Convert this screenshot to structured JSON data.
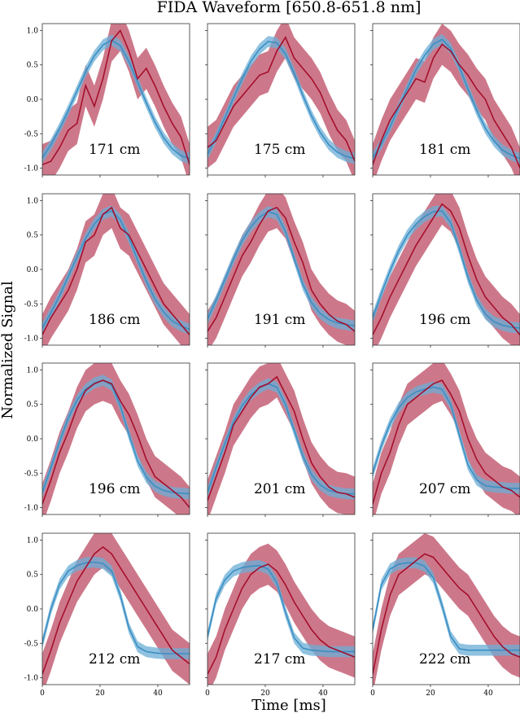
{
  "chart_data": {
    "type": "line",
    "title": "FIDA Waveform [650.8-651.8 nm]",
    "xlabel": "Time [ms]",
    "ylabel": "Normalized Signal",
    "xlim": [
      0,
      51
    ],
    "ylim": [
      -1.1,
      1.1
    ],
    "xticks": [
      0,
      20,
      40
    ],
    "yticks": [
      -1.0,
      -0.5,
      0.0,
      0.5,
      1.0
    ],
    "colors": {
      "model": "#3a8fc4",
      "model_band": "#6baed6",
      "measured": "#a50f2d",
      "measured_band": "#c0566d"
    },
    "panels": [
      {
        "label": "171 cm",
        "model": {
          "x": [
            0,
            3,
            6,
            9,
            12,
            15,
            18,
            21,
            24,
            27,
            30,
            33,
            36,
            39,
            42,
            45,
            48,
            51
          ],
          "y": [
            -0.85,
            -0.66,
            -0.42,
            -0.16,
            0.12,
            0.4,
            0.63,
            0.79,
            0.86,
            0.78,
            0.55,
            0.25,
            -0.05,
            -0.33,
            -0.56,
            -0.72,
            -0.82,
            -0.86
          ]
        },
        "measured": {
          "x": [
            0,
            3,
            6,
            9,
            12,
            15,
            18,
            21,
            24,
            27,
            30,
            33,
            36,
            39,
            42,
            45,
            48,
            51
          ],
          "y": [
            -0.95,
            -0.9,
            -0.7,
            -0.45,
            -0.35,
            0.2,
            -0.1,
            0.3,
            0.85,
            1.0,
            0.7,
            0.3,
            0.45,
            0.2,
            -0.1,
            -0.35,
            -0.55,
            -0.95
          ]
        }
      },
      {
        "label": "175 cm",
        "model": {
          "x": [
            0,
            3,
            6,
            9,
            12,
            15,
            18,
            21,
            24,
            27,
            30,
            33,
            36,
            39,
            42,
            45,
            48,
            51
          ],
          "y": [
            -0.8,
            -0.55,
            -0.27,
            0.02,
            0.3,
            0.55,
            0.73,
            0.84,
            0.82,
            0.66,
            0.38,
            0.06,
            -0.24,
            -0.48,
            -0.66,
            -0.77,
            -0.83,
            -0.86
          ]
        },
        "measured": {
          "x": [
            0,
            3,
            6,
            9,
            12,
            15,
            18,
            21,
            24,
            27,
            30,
            33,
            36,
            39,
            42,
            45,
            48,
            51
          ],
          "y": [
            -0.7,
            -0.6,
            -0.35,
            -0.1,
            0.05,
            0.2,
            0.35,
            0.4,
            0.7,
            0.9,
            0.6,
            0.45,
            0.3,
            0.1,
            -0.2,
            -0.45,
            -0.6,
            -0.9
          ]
        }
      },
      {
        "label": "181 cm",
        "model": {
          "x": [
            0,
            3,
            6,
            9,
            12,
            15,
            18,
            21,
            24,
            27,
            30,
            33,
            36,
            39,
            42,
            45,
            48,
            51
          ],
          "y": [
            -0.85,
            -0.65,
            -0.4,
            -0.12,
            0.16,
            0.43,
            0.64,
            0.8,
            0.87,
            0.74,
            0.47,
            0.15,
            -0.16,
            -0.42,
            -0.61,
            -0.74,
            -0.81,
            -0.86
          ]
        },
        "measured": {
          "x": [
            0,
            3,
            6,
            9,
            12,
            15,
            18,
            21,
            24,
            27,
            30,
            33,
            36,
            39,
            42,
            45,
            48,
            51
          ],
          "y": [
            -0.95,
            -0.6,
            -0.3,
            -0.1,
            0.1,
            0.3,
            0.25,
            0.6,
            0.8,
            0.7,
            0.5,
            0.35,
            0.15,
            0.0,
            -0.3,
            -0.5,
            -0.7,
            -1.0
          ]
        }
      },
      {
        "label": "186 cm",
        "model": {
          "x": [
            0,
            3,
            6,
            9,
            12,
            15,
            18,
            21,
            24,
            27,
            30,
            33,
            36,
            39,
            42,
            45,
            48,
            51
          ],
          "y": [
            -0.85,
            -0.63,
            -0.38,
            -0.1,
            0.18,
            0.45,
            0.66,
            0.8,
            0.85,
            0.72,
            0.46,
            0.14,
            -0.17,
            -0.43,
            -0.62,
            -0.75,
            -0.82,
            -0.87
          ]
        },
        "measured": {
          "x": [
            0,
            3,
            6,
            9,
            12,
            15,
            18,
            21,
            24,
            27,
            30,
            33,
            36,
            39,
            42,
            45,
            48,
            51
          ],
          "y": [
            -0.95,
            -0.7,
            -0.5,
            -0.3,
            0.0,
            0.4,
            0.5,
            0.8,
            0.9,
            0.6,
            0.5,
            0.25,
            0.0,
            -0.25,
            -0.5,
            -0.65,
            -0.8,
            -0.95
          ]
        }
      },
      {
        "label": "191 cm",
        "model": {
          "x": [
            0,
            3,
            6,
            9,
            12,
            15,
            18,
            21,
            24,
            27,
            30,
            33,
            36,
            39,
            42,
            45,
            48,
            51
          ],
          "y": [
            -0.72,
            -0.45,
            -0.15,
            0.15,
            0.42,
            0.62,
            0.76,
            0.84,
            0.8,
            0.55,
            0.16,
            -0.22,
            -0.48,
            -0.64,
            -0.73,
            -0.78,
            -0.8,
            -0.82
          ]
        },
        "measured": {
          "x": [
            0,
            3,
            6,
            9,
            12,
            15,
            18,
            21,
            24,
            27,
            30,
            33,
            36,
            39,
            42,
            45,
            48,
            51
          ],
          "y": [
            -0.9,
            -0.7,
            -0.4,
            -0.1,
            0.2,
            0.4,
            0.65,
            0.85,
            0.9,
            0.75,
            0.4,
            0.1,
            -0.3,
            -0.5,
            -0.65,
            -0.75,
            -0.8,
            -0.9
          ]
        }
      },
      {
        "label": "196 cm",
        "model": {
          "x": [
            0,
            3,
            6,
            9,
            12,
            15,
            18,
            21,
            24,
            27,
            30,
            33,
            36,
            39,
            42,
            45,
            48,
            51
          ],
          "y": [
            -0.7,
            -0.35,
            -0.02,
            0.27,
            0.5,
            0.66,
            0.77,
            0.84,
            0.85,
            0.68,
            0.3,
            -0.12,
            -0.45,
            -0.65,
            -0.76,
            -0.81,
            -0.84,
            -0.85
          ]
        },
        "measured": {
          "x": [
            0,
            3,
            6,
            9,
            12,
            15,
            18,
            21,
            24,
            27,
            30,
            33,
            36,
            39,
            42,
            45,
            48,
            51
          ],
          "y": [
            -0.95,
            -0.7,
            -0.4,
            -0.15,
            0.1,
            0.35,
            0.55,
            0.75,
            0.95,
            0.85,
            0.6,
            0.2,
            -0.15,
            -0.4,
            -0.55,
            -0.7,
            -0.8,
            -0.95
          ]
        }
      },
      {
        "label": "196 cm",
        "model": {
          "x": [
            0,
            3,
            6,
            9,
            12,
            15,
            18,
            21,
            24,
            27,
            30,
            33,
            36,
            39,
            42,
            45,
            48,
            51
          ],
          "y": [
            -0.78,
            -0.42,
            -0.04,
            0.3,
            0.56,
            0.72,
            0.81,
            0.85,
            0.78,
            0.48,
            0.06,
            -0.32,
            -0.56,
            -0.69,
            -0.75,
            -0.78,
            -0.79,
            -0.8
          ]
        },
        "measured": {
          "x": [
            0,
            3,
            6,
            9,
            12,
            15,
            18,
            21,
            24,
            27,
            30,
            33,
            36,
            39,
            42,
            45,
            48,
            51
          ],
          "y": [
            -0.95,
            -0.6,
            -0.2,
            0.1,
            0.45,
            0.7,
            0.8,
            0.85,
            0.8,
            0.55,
            0.35,
            0.05,
            -0.3,
            -0.55,
            -0.65,
            -0.75,
            -0.85,
            -1.0
          ]
        }
      },
      {
        "label": "201 cm",
        "model": {
          "x": [
            0,
            3,
            6,
            9,
            12,
            15,
            18,
            21,
            24,
            27,
            30,
            33,
            36,
            39,
            42,
            45,
            48,
            51
          ],
          "y": [
            -0.78,
            -0.42,
            -0.07,
            0.24,
            0.48,
            0.64,
            0.74,
            0.8,
            0.75,
            0.5,
            0.12,
            -0.25,
            -0.52,
            -0.67,
            -0.75,
            -0.78,
            -0.8,
            -0.8
          ]
        },
        "measured": {
          "x": [
            0,
            3,
            6,
            9,
            12,
            15,
            18,
            21,
            24,
            27,
            30,
            33,
            36,
            39,
            42,
            45,
            48,
            51
          ],
          "y": [
            -0.9,
            -0.55,
            -0.2,
            0.2,
            0.4,
            0.6,
            0.75,
            0.8,
            0.9,
            0.65,
            0.4,
            0.0,
            -0.35,
            -0.55,
            -0.7,
            -0.78,
            -0.8,
            -0.85
          ]
        }
      },
      {
        "label": "207 cm",
        "model": {
          "x": [
            0,
            3,
            6,
            9,
            12,
            15,
            18,
            21,
            24,
            27,
            30,
            33,
            36,
            39,
            42,
            45,
            48,
            51
          ],
          "y": [
            -0.5,
            -0.1,
            0.22,
            0.45,
            0.6,
            0.68,
            0.72,
            0.75,
            0.72,
            0.5,
            0.05,
            -0.38,
            -0.6,
            -0.68,
            -0.7,
            -0.71,
            -0.72,
            -0.72
          ]
        },
        "measured": {
          "x": [
            0,
            3,
            6,
            9,
            12,
            15,
            18,
            21,
            24,
            27,
            30,
            33,
            36,
            39,
            42,
            45,
            48,
            51
          ],
          "y": [
            -0.95,
            -0.5,
            -0.2,
            0.2,
            0.5,
            0.6,
            0.7,
            0.8,
            0.85,
            0.65,
            0.4,
            0.0,
            -0.3,
            -0.5,
            -0.6,
            -0.7,
            -0.75,
            -0.85
          ]
        }
      },
      {
        "label": "212 cm",
        "model": {
          "x": [
            0,
            3,
            6,
            9,
            12,
            15,
            18,
            21,
            24,
            27,
            30,
            33,
            36,
            39,
            42,
            45,
            48,
            51
          ],
          "y": [
            -0.5,
            0.0,
            0.36,
            0.55,
            0.63,
            0.67,
            0.68,
            0.66,
            0.55,
            0.2,
            -0.28,
            -0.55,
            -0.62,
            -0.64,
            -0.65,
            -0.65,
            -0.65,
            -0.65
          ]
        },
        "measured": {
          "x": [
            0,
            3,
            6,
            9,
            12,
            15,
            18,
            21,
            24,
            27,
            30,
            33,
            36,
            39,
            42,
            45,
            48,
            51
          ],
          "y": [
            -0.95,
            -0.6,
            -0.2,
            0.1,
            0.4,
            0.6,
            0.8,
            0.9,
            0.8,
            0.6,
            0.4,
            0.2,
            0.0,
            -0.2,
            -0.4,
            -0.6,
            -0.7,
            -0.8
          ]
        }
      },
      {
        "label": "217 cm",
        "model": {
          "x": [
            0,
            3,
            6,
            9,
            12,
            15,
            18,
            21,
            24,
            27,
            30,
            33,
            36,
            39,
            42,
            45,
            48,
            51
          ],
          "y": [
            -0.4,
            0.15,
            0.42,
            0.55,
            0.6,
            0.62,
            0.63,
            0.58,
            0.38,
            -0.05,
            -0.42,
            -0.57,
            -0.6,
            -0.61,
            -0.62,
            -0.62,
            -0.62,
            -0.62
          ]
        },
        "measured": {
          "x": [
            0,
            3,
            6,
            9,
            12,
            15,
            18,
            21,
            24,
            27,
            30,
            33,
            36,
            39,
            42,
            45,
            48,
            51
          ],
          "y": [
            -0.95,
            -0.7,
            -0.3,
            0.0,
            0.3,
            0.5,
            0.6,
            0.65,
            0.55,
            0.35,
            0.1,
            -0.1,
            -0.3,
            -0.45,
            -0.55,
            -0.6,
            -0.65,
            -0.7
          ]
        }
      },
      {
        "label": "222 cm",
        "model": {
          "x": [
            0,
            3,
            6,
            9,
            12,
            15,
            18,
            21,
            24,
            27,
            30,
            33,
            36,
            39,
            42,
            45,
            48,
            51
          ],
          "y": [
            -0.3,
            0.35,
            0.58,
            0.65,
            0.67,
            0.67,
            0.62,
            0.45,
            0.05,
            -0.4,
            -0.58,
            -0.6,
            -0.6,
            -0.6,
            -0.6,
            -0.6,
            -0.6,
            -0.6
          ]
        },
        "measured": {
          "x": [
            0,
            3,
            6,
            9,
            12,
            15,
            18,
            21,
            24,
            27,
            30,
            33,
            36,
            39,
            42,
            45,
            48,
            51
          ],
          "y": [
            -0.95,
            -0.3,
            0.2,
            0.5,
            0.6,
            0.7,
            0.8,
            0.75,
            0.6,
            0.45,
            0.3,
            0.2,
            0.0,
            -0.2,
            -0.4,
            -0.55,
            -0.65,
            -0.7
          ]
        }
      }
    ]
  }
}
